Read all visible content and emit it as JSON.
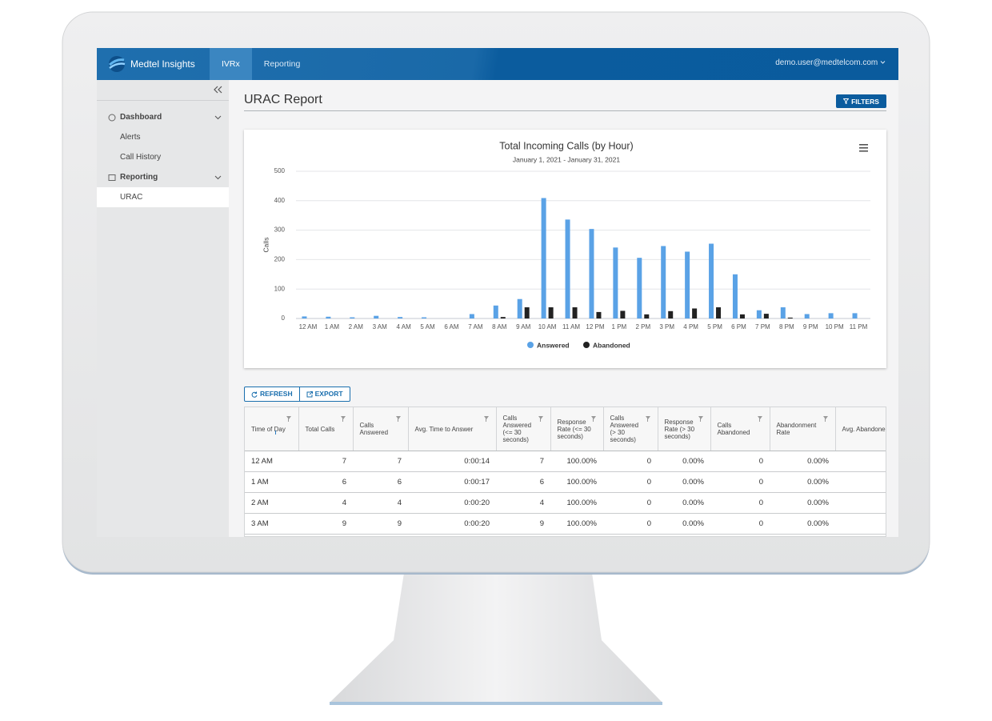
{
  "header": {
    "brand": "Medtel Insights",
    "nav": [
      "IVRx",
      "Reporting"
    ],
    "user": "demo.user@medtelcom.com"
  },
  "sidebar": {
    "groups": [
      {
        "label": "Dashboard",
        "items": [
          "Alerts",
          "Call History"
        ]
      },
      {
        "label": "Reporting",
        "items": [
          "URAC"
        ]
      }
    ]
  },
  "page": {
    "title": "URAC Report",
    "filters_button": "FILTERS"
  },
  "chart_data": {
    "type": "bar",
    "title": "Total Incoming Calls (by Hour)",
    "subtitle": "January 1, 2021 - January 31, 2021",
    "y_label": "Calls",
    "categories": [
      "12 AM",
      "1 AM",
      "2 AM",
      "3 AM",
      "4 AM",
      "5 AM",
      "6 AM",
      "7 AM",
      "8 AM",
      "9 AM",
      "10 AM",
      "11 AM",
      "12 PM",
      "1 PM",
      "2 PM",
      "3 PM",
      "4 PM",
      "5 PM",
      "6 PM",
      "7 PM",
      "8 PM",
      "9 PM",
      "10 PM",
      "11 PM"
    ],
    "series": [
      {
        "name": "Answered",
        "color": "#5aa2e6",
        "values": [
          7,
          6,
          4,
          9,
          5,
          4,
          0,
          15,
          44,
          66,
          409,
          336,
          304,
          241,
          206,
          246,
          227,
          254,
          150,
          28,
          38,
          15,
          18,
          18
        ]
      },
      {
        "name": "Abandoned",
        "color": "#222222",
        "values": [
          0,
          0,
          0,
          0,
          0,
          0,
          0,
          0,
          5,
          38,
          38,
          38,
          22,
          26,
          14,
          25,
          34,
          38,
          14,
          16,
          3,
          0,
          0,
          0
        ]
      }
    ],
    "ylim": [
      0,
      500
    ],
    "yticks": [
      0,
      100,
      200,
      300,
      400,
      500
    ],
    "grid": true,
    "legend": "bottom"
  },
  "toolbar": {
    "buttons": [
      "REFRESH",
      "EXPORT"
    ]
  },
  "table": {
    "columns": [
      "Time of Day",
      "Total Calls",
      "Calls Answered",
      "Avg. Time to Answer",
      "Calls Answered (<= 30 seconds)",
      "Response Rate (<= 30 seconds)",
      "Calls Answered (> 30 seconds)",
      "Response Rate (> 30 seconds)",
      "Calls Abandoned",
      "Abandonment Rate",
      "Avg. Abandoned Ring Time"
    ],
    "rows": [
      [
        "12 AM",
        "7",
        "7",
        "0:00:14",
        "7",
        "100.00%",
        "0",
        "0.00%",
        "0",
        "0.00%"
      ],
      [
        "1 AM",
        "6",
        "6",
        "0:00:17",
        "6",
        "100.00%",
        "0",
        "0.00%",
        "0",
        "0.00%"
      ],
      [
        "2 AM",
        "4",
        "4",
        "0:00:20",
        "4",
        "100.00%",
        "0",
        "0.00%",
        "0",
        "0.00%"
      ],
      [
        "3 AM",
        "9",
        "9",
        "0:00:20",
        "9",
        "100.00%",
        "0",
        "0.00%",
        "0",
        "0.00%"
      ]
    ]
  }
}
